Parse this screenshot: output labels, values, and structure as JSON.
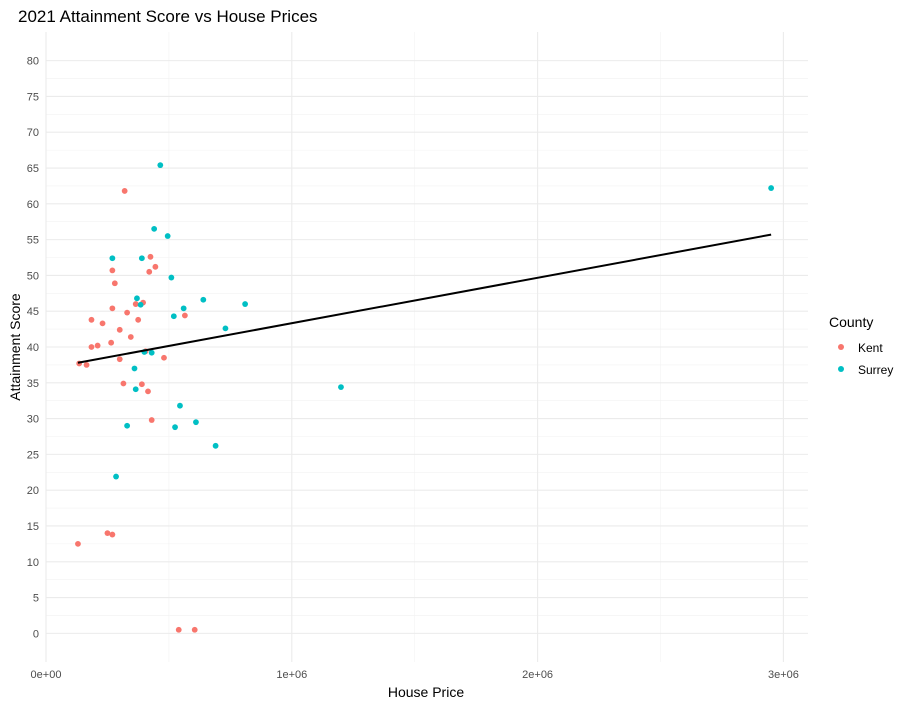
{
  "chart_data": {
    "type": "scatter",
    "title": "2021 Attainment Score vs House Prices",
    "xlabel": "House Price",
    "ylabel": "Attainment Score",
    "xlim": [
      0,
      3100000
    ],
    "ylim": [
      -4,
      84
    ],
    "x_ticks": [
      0,
      1000000,
      2000000,
      3000000
    ],
    "x_tick_labels": [
      "0e+00",
      "1e+06",
      "2e+06",
      "3e+06"
    ],
    "x_minor_ticks": [
      500000,
      1500000,
      2500000
    ],
    "y_ticks": [
      0,
      5,
      10,
      15,
      20,
      25,
      30,
      35,
      40,
      45,
      50,
      55,
      60,
      65,
      70,
      75,
      80
    ],
    "y_tick_labels": [
      "0",
      "5",
      "10",
      "15",
      "20",
      "25",
      "30",
      "35",
      "40",
      "45",
      "50",
      "55",
      "60",
      "65",
      "70",
      "75",
      "80"
    ],
    "grid": true,
    "legend": {
      "title": "County",
      "placement": "right"
    },
    "series": [
      {
        "name": "Kent",
        "color": "#f8766d",
        "points": [
          [
            130000,
            12.5
          ],
          [
            135000,
            37.7
          ],
          [
            165000,
            37.5
          ],
          [
            185000,
            43.8
          ],
          [
            185000,
            40.0
          ],
          [
            210000,
            40.2
          ],
          [
            230000,
            43.3
          ],
          [
            250000,
            14.0
          ],
          [
            265000,
            40.6
          ],
          [
            270000,
            13.8
          ],
          [
            270000,
            45.4
          ],
          [
            270000,
            50.7
          ],
          [
            280000,
            48.9
          ],
          [
            300000,
            42.4
          ],
          [
            300000,
            38.3
          ],
          [
            315000,
            34.9
          ],
          [
            320000,
            61.8
          ],
          [
            330000,
            44.8
          ],
          [
            345000,
            41.4
          ],
          [
            365000,
            46.0
          ],
          [
            375000,
            43.8
          ],
          [
            390000,
            34.8
          ],
          [
            395000,
            46.2
          ],
          [
            405000,
            39.4
          ],
          [
            415000,
            33.8
          ],
          [
            420000,
            50.5
          ],
          [
            425000,
            52.6
          ],
          [
            430000,
            29.8
          ],
          [
            445000,
            51.2
          ],
          [
            480000,
            38.5
          ],
          [
            540000,
            0.5
          ],
          [
            565000,
            44.4
          ],
          [
            605000,
            0.5
          ]
        ]
      },
      {
        "name": "Surrey",
        "color": "#00bfc4",
        "points": [
          [
            270000,
            52.4
          ],
          [
            285000,
            21.9
          ],
          [
            330000,
            29.0
          ],
          [
            360000,
            37.0
          ],
          [
            365000,
            34.1
          ],
          [
            370000,
            46.8
          ],
          [
            385000,
            45.9
          ],
          [
            390000,
            52.4
          ],
          [
            400000,
            39.3
          ],
          [
            430000,
            39.2
          ],
          [
            440000,
            56.5
          ],
          [
            465000,
            65.4
          ],
          [
            495000,
            55.5
          ],
          [
            510000,
            49.7
          ],
          [
            520000,
            44.3
          ],
          [
            525000,
            28.8
          ],
          [
            545000,
            31.8
          ],
          [
            560000,
            45.4
          ],
          [
            610000,
            29.5
          ],
          [
            640000,
            46.6
          ],
          [
            690000,
            26.2
          ],
          [
            730000,
            42.6
          ],
          [
            810000,
            46.0
          ],
          [
            1200000,
            34.4
          ],
          [
            2950000,
            62.2
          ]
        ]
      }
    ],
    "trend_line": {
      "color": "#000000",
      "from": [
        130000,
        37.8
      ],
      "to": [
        2950000,
        55.7
      ]
    }
  }
}
